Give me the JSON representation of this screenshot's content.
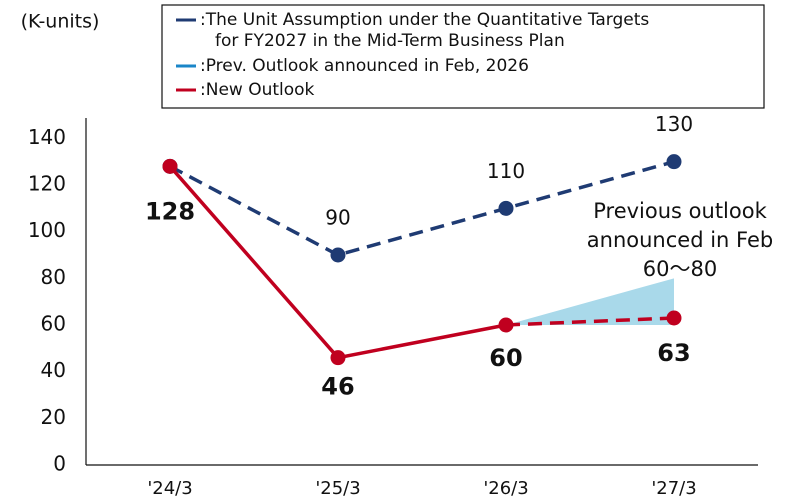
{
  "chart_data": {
    "type": "line",
    "unit_label": "(K-units)",
    "categories": [
      "'24/3",
      "'25/3",
      "'26/3",
      "'27/3"
    ],
    "ylim": [
      0,
      150
    ],
    "yticks": [
      0,
      20,
      40,
      60,
      80,
      100,
      120,
      140
    ],
    "series": [
      {
        "name": ":The Unit Assumption under the Quantitative Targets\nfor FY2027 in the Mid-Term Business Plan",
        "color": "#1f3b73",
        "dashed": true,
        "values": [
          128,
          90,
          110,
          130
        ],
        "value_labels": [
          null,
          "90",
          "110",
          "130"
        ]
      },
      {
        "name": ":Prev. Outlook announced in Feb, 2026",
        "color": "#1a86c8",
        "low": [
          null,
          null,
          60,
          60
        ],
        "high": [
          null,
          null,
          60,
          80
        ],
        "fill": "#a9d9ea"
      },
      {
        "name": ":New Outlook",
        "color": "#c0001f",
        "dashed_from": 2,
        "values": [
          128,
          46,
          60,
          63
        ],
        "value_labels": [
          "128",
          "46",
          "60",
          "63"
        ]
      }
    ],
    "annotation": {
      "lines": [
        "Previous outlook",
        "announced in Feb",
        "60〜80"
      ],
      "color": "#1aa3c4"
    }
  }
}
